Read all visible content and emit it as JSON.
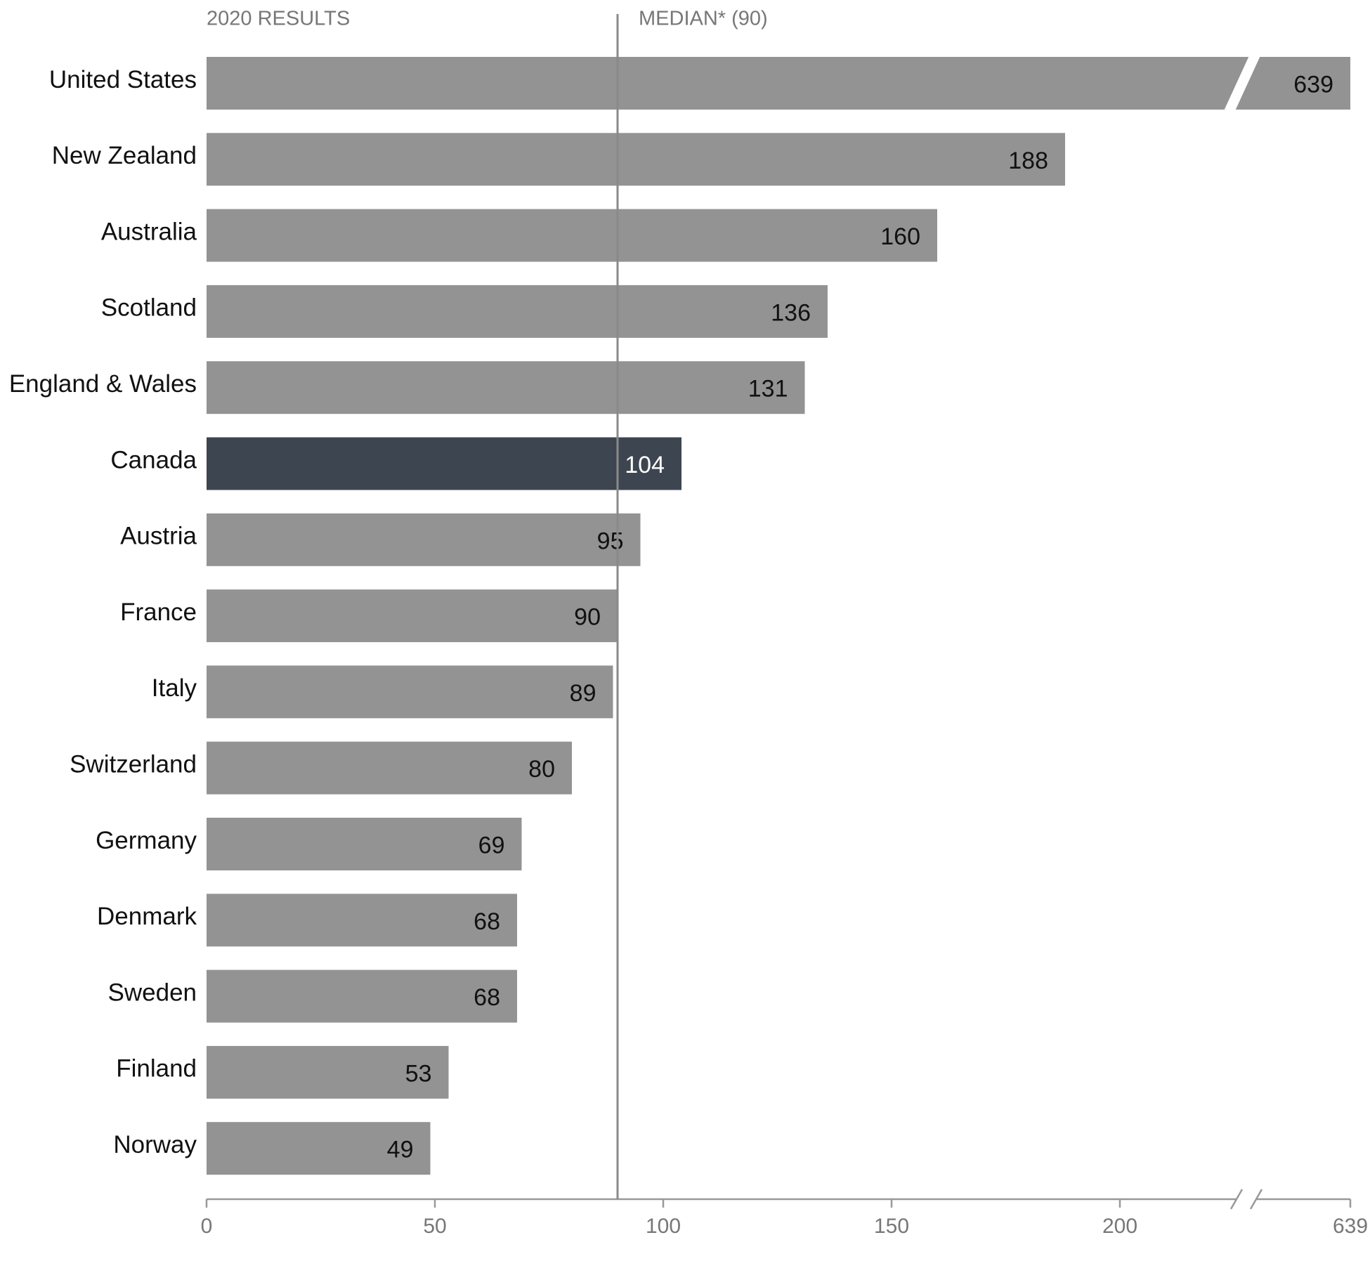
{
  "chart_data": {
    "type": "hbar",
    "header_left": "2020 RESULTS",
    "categories": [
      "United States",
      "New Zealand",
      "Australia",
      "Scotland",
      "England & Wales",
      "Canada",
      "Austria",
      "France",
      "Italy",
      "Switzerland",
      "Germany",
      "Denmark",
      "Sweden",
      "Finland",
      "Norway"
    ],
    "values": [
      639,
      188,
      160,
      136,
      131,
      104,
      95,
      90,
      89,
      80,
      69,
      68,
      68,
      53,
      49
    ],
    "colors": [
      "#939393",
      "#939393",
      "#939393",
      "#939393",
      "#939393",
      "#3d4550",
      "#939393",
      "#939393",
      "#939393",
      "#939393",
      "#939393",
      "#939393",
      "#939393",
      "#939393",
      "#939393"
    ],
    "label_colors": [
      "#111",
      "#111",
      "#111",
      "#111",
      "#111",
      "#fff",
      "#111",
      "#111",
      "#111",
      "#111",
      "#111",
      "#111",
      "#111",
      "#111",
      "#111"
    ],
    "median": {
      "value": 90,
      "label": "MEDIAN* (90)"
    },
    "xlim": [
      0,
      639
    ],
    "xticks": [
      0,
      50,
      100,
      150,
      200,
      639
    ],
    "axis_break": true
  }
}
